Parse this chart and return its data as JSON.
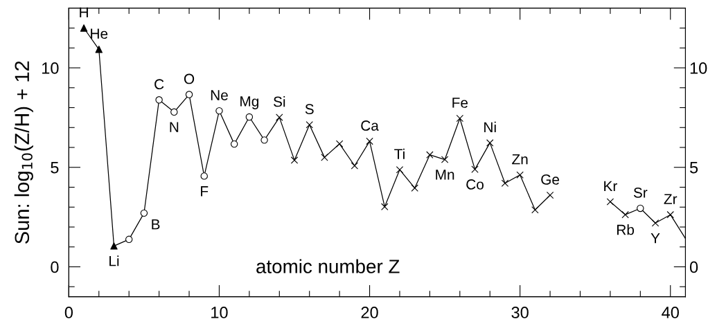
{
  "chart_data": {
    "type": "line",
    "xlabel": "atomic number Z",
    "ylabel": "Sun: log$_{10}$(Z/H) + 12",
    "xlim": [
      0,
      41
    ],
    "ylim": [
      -1.5,
      13
    ],
    "xticks": [
      0,
      {
        "value": 2,
        "label": null
      },
      {
        "value": 4,
        "label": null
      },
      {
        "value": 6,
        "label": null
      },
      {
        "value": 8,
        "label": null
      },
      10,
      {
        "value": 12,
        "label": null
      },
      {
        "value": 14,
        "label": null
      },
      {
        "value": 16,
        "label": null
      },
      {
        "value": 18,
        "label": null
      },
      20,
      {
        "value": 22,
        "label": null
      },
      {
        "value": 24,
        "label": null
      },
      {
        "value": 26,
        "label": null
      },
      {
        "value": 28,
        "label": null
      },
      30,
      {
        "value": 32,
        "label": null
      },
      {
        "value": 34,
        "label": null
      },
      {
        "value": 36,
        "label": null
      },
      {
        "value": 38,
        "label": null
      },
      40
    ],
    "yticks": [
      {
        "value": -1,
        "label": null
      },
      0,
      {
        "value": 1,
        "label": null
      },
      {
        "value": 2,
        "label": null
      },
      {
        "value": 3,
        "label": null
      },
      {
        "value": 4,
        "label": null
      },
      5,
      {
        "value": 6,
        "label": null
      },
      {
        "value": 7,
        "label": null
      },
      {
        "value": 8,
        "label": null
      },
      {
        "value": 9,
        "label": null
      },
      10,
      {
        "value": 11,
        "label": null
      },
      {
        "value": 12,
        "label": null
      }
    ],
    "y2lim": [
      -1.5,
      13
    ],
    "y2ticks": [
      {
        "value": -1,
        "label": null
      },
      0,
      {
        "value": 1,
        "label": null
      },
      {
        "value": 2,
        "label": null
      },
      {
        "value": 3,
        "label": null
      },
      {
        "value": 4,
        "label": null
      },
      5,
      {
        "value": 6,
        "label": null
      },
      {
        "value": 7,
        "label": null
      },
      {
        "value": 8,
        "label": null
      },
      {
        "value": 9,
        "label": null
      },
      10,
      {
        "value": 11,
        "label": null
      },
      {
        "value": 12,
        "label": null
      }
    ],
    "grid": false,
    "series": [
      {
        "color": "#000000",
        "marker": "none",
        "line_style": "solid",
        "x": [
          1,
          2,
          3,
          4,
          5,
          6,
          7,
          8,
          9,
          10,
          11,
          12,
          13,
          14,
          15,
          16,
          17,
          18,
          19,
          20,
          21,
          22,
          23,
          24,
          25,
          26,
          27,
          28,
          29,
          30,
          31,
          32,
          33,
          34,
          35,
          36,
          37,
          38,
          39,
          40,
          41
        ],
        "values": [
          12.0,
          10.93,
          1.05,
          1.38,
          2.7,
          8.39,
          7.78,
          8.66,
          4.56,
          7.84,
          6.17,
          7.53,
          6.37,
          7.51,
          5.36,
          7.14,
          5.5,
          6.18,
          5.08,
          6.31,
          3.02,
          4.88,
          3.96,
          5.63,
          5.39,
          7.46,
          4.9,
          6.23,
          4.2,
          4.62,
          2.86,
          3.6,
          null,
          null,
          null,
          3.27,
          2.62,
          2.94,
          2.2,
          2.62,
          1.42
        ]
      },
      {
        "type": "scatter",
        "color": "#000000",
        "marker": "triangle",
        "x": [
          1,
          2,
          3
        ],
        "values": [
          12.0,
          10.93,
          1.05
        ]
      },
      {
        "type": "scatter",
        "color": "#000000",
        "marker": "circle",
        "x": [
          4,
          5,
          6,
          7,
          8,
          9,
          10,
          11,
          12,
          13,
          38
        ],
        "values": [
          1.38,
          2.7,
          8.39,
          7.78,
          8.66,
          4.56,
          7.84,
          6.17,
          7.53,
          6.37,
          2.94
        ]
      },
      {
        "type": "scatter",
        "color": "#000000",
        "marker": "cross",
        "x": [
          14,
          15,
          16,
          17,
          18,
          19,
          20,
          21,
          22,
          23,
          24,
          25,
          26,
          27,
          28,
          29,
          30,
          31,
          32,
          36,
          37,
          39,
          40
        ],
        "values": [
          7.51,
          5.36,
          7.14,
          5.5,
          6.18,
          5.08,
          6.31,
          3.02,
          4.88,
          3.96,
          5.63,
          5.39,
          7.46,
          4.9,
          6.23,
          4.2,
          4.62,
          2.86,
          3.6,
          3.27,
          2.62,
          2.2,
          2.62
        ]
      }
    ],
    "annotations": [
      {
        "text": "H",
        "x": 1,
        "y": 12.0
      },
      {
        "text": "He",
        "x": 2,
        "y": 10.93
      },
      {
        "text": "Li",
        "x": 3,
        "y": 1.05
      },
      {
        "text": "B",
        "x": 5,
        "y": 2.7
      },
      {
        "text": "C",
        "x": 6,
        "y": 8.39
      },
      {
        "text": "N",
        "x": 7,
        "y": 7.78
      },
      {
        "text": "O",
        "x": 8,
        "y": 8.66
      },
      {
        "text": "F",
        "x": 9,
        "y": 4.56
      },
      {
        "text": "Ne",
        "x": 10,
        "y": 7.84
      },
      {
        "text": "Mg",
        "x": 12,
        "y": 7.53
      },
      {
        "text": "Si",
        "x": 14,
        "y": 7.51
      },
      {
        "text": "S",
        "x": 16,
        "y": 7.14
      },
      {
        "text": "Ca",
        "x": 20,
        "y": 6.31
      },
      {
        "text": "Ti",
        "x": 22,
        "y": 4.88
      },
      {
        "text": "Mn",
        "x": 25,
        "y": 5.39
      },
      {
        "text": "Fe",
        "x": 26,
        "y": 7.46
      },
      {
        "text": "Co",
        "x": 27,
        "y": 4.9
      },
      {
        "text": "Ni",
        "x": 28,
        "y": 6.23
      },
      {
        "text": "Zn",
        "x": 30,
        "y": 4.62
      },
      {
        "text": "Ge",
        "x": 32,
        "y": 3.6
      },
      {
        "text": "Kr",
        "x": 36,
        "y": 3.27
      },
      {
        "text": "Rb",
        "x": 37,
        "y": 2.62
      },
      {
        "text": "Sr",
        "x": 38,
        "y": 2.94
      },
      {
        "text": "Y",
        "x": 39,
        "y": 2.2
      },
      {
        "text": "Zr",
        "x": 40,
        "y": 2.62
      }
    ]
  }
}
